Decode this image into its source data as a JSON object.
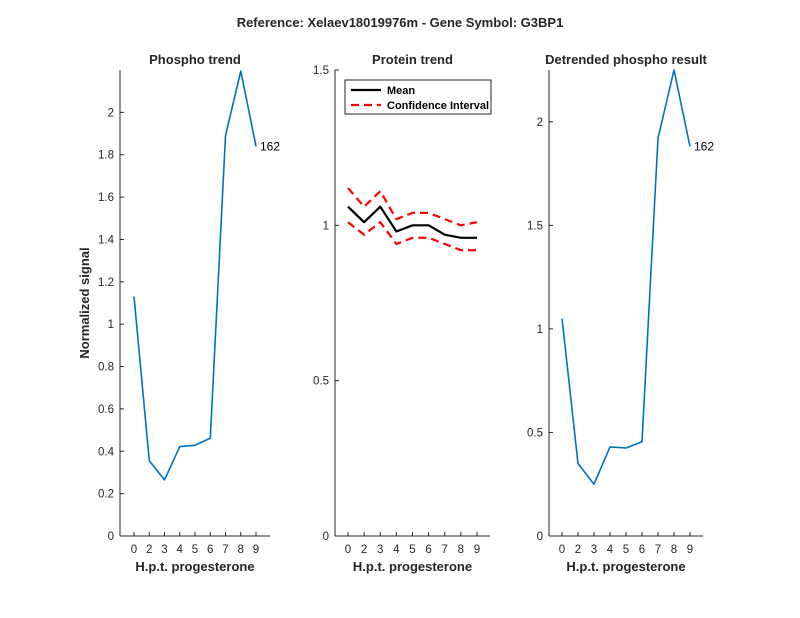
{
  "suptitle": "Reference:  Xelaev18019976m - Gene Symbol:  G3BP1",
  "chart_data": [
    {
      "type": "line",
      "title": "Phospho trend",
      "xlabel": "H.p.t. progesterone",
      "ylabel": "Normalized signal",
      "x": [
        0,
        1,
        2,
        3,
        4,
        5,
        6,
        7,
        8
      ],
      "x_tick_labels": [
        "0",
        "2",
        "3",
        "4",
        "5",
        "6",
        "7",
        "8",
        "9"
      ],
      "yticks": [
        "0",
        "0.2",
        "0.4",
        "0.6",
        "0.8",
        "1",
        "1.2",
        "1.4",
        "1.6",
        "1.8",
        "2"
      ],
      "ylim": [
        0,
        2.2
      ],
      "series": [
        {
          "values": [
            1.13,
            0.355,
            0.265,
            0.422,
            0.428,
            0.462,
            1.89,
            2.195,
            1.84
          ],
          "color": "#0072BD",
          "style": "solid"
        }
      ],
      "annotation": {
        "text": "162",
        "x": 8,
        "y": 1.84
      }
    },
    {
      "type": "line",
      "title": "Protein trend",
      "xlabel": "H.p.t. progesterone",
      "ylabel": "",
      "x": [
        0,
        1,
        2,
        3,
        4,
        5,
        6,
        7,
        8
      ],
      "x_tick_labels": [
        "0",
        "2",
        "3",
        "4",
        "5",
        "6",
        "7",
        "8",
        "9"
      ],
      "yticks": [
        "0",
        "0.5",
        "1",
        "1.5"
      ],
      "ylim": [
        0,
        1.5
      ],
      "legend": {
        "position": "top-left",
        "entries": [
          "Mean",
          "Confidence Interval"
        ]
      },
      "series": [
        {
          "name": "Mean",
          "values": [
            1.06,
            1.01,
            1.06,
            0.98,
            1.0,
            1.0,
            0.97,
            0.96,
            0.96
          ],
          "color": "#000000",
          "style": "solid"
        },
        {
          "name": "Confidence Interval",
          "values": [
            1.12,
            1.06,
            1.11,
            1.02,
            1.04,
            1.04,
            1.02,
            1.0,
            1.01
          ],
          "color": "#FF0000",
          "style": "dashed"
        },
        {
          "name": "Confidence Interval",
          "values": [
            1.01,
            0.97,
            1.01,
            0.94,
            0.96,
            0.96,
            0.94,
            0.92,
            0.92
          ],
          "color": "#FF0000",
          "style": "dashed"
        }
      ]
    },
    {
      "type": "line",
      "title": "Detrended phospho result",
      "xlabel": "H.p.t. progesterone",
      "ylabel": "",
      "x": [
        0,
        1,
        2,
        3,
        4,
        5,
        6,
        7,
        8
      ],
      "x_tick_labels": [
        "0",
        "2",
        "3",
        "4",
        "5",
        "6",
        "7",
        "8",
        "9"
      ],
      "yticks": [
        "0",
        "0.5",
        "1",
        "1.5",
        "2"
      ],
      "ylim": [
        0,
        2.25
      ],
      "series": [
        {
          "values": [
            1.05,
            0.35,
            0.25,
            0.43,
            0.425,
            0.455,
            1.92,
            2.25,
            1.88
          ],
          "color": "#0072BD",
          "style": "solid"
        }
      ],
      "annotation": {
        "text": "162",
        "x": 8,
        "y": 1.88
      }
    }
  ]
}
